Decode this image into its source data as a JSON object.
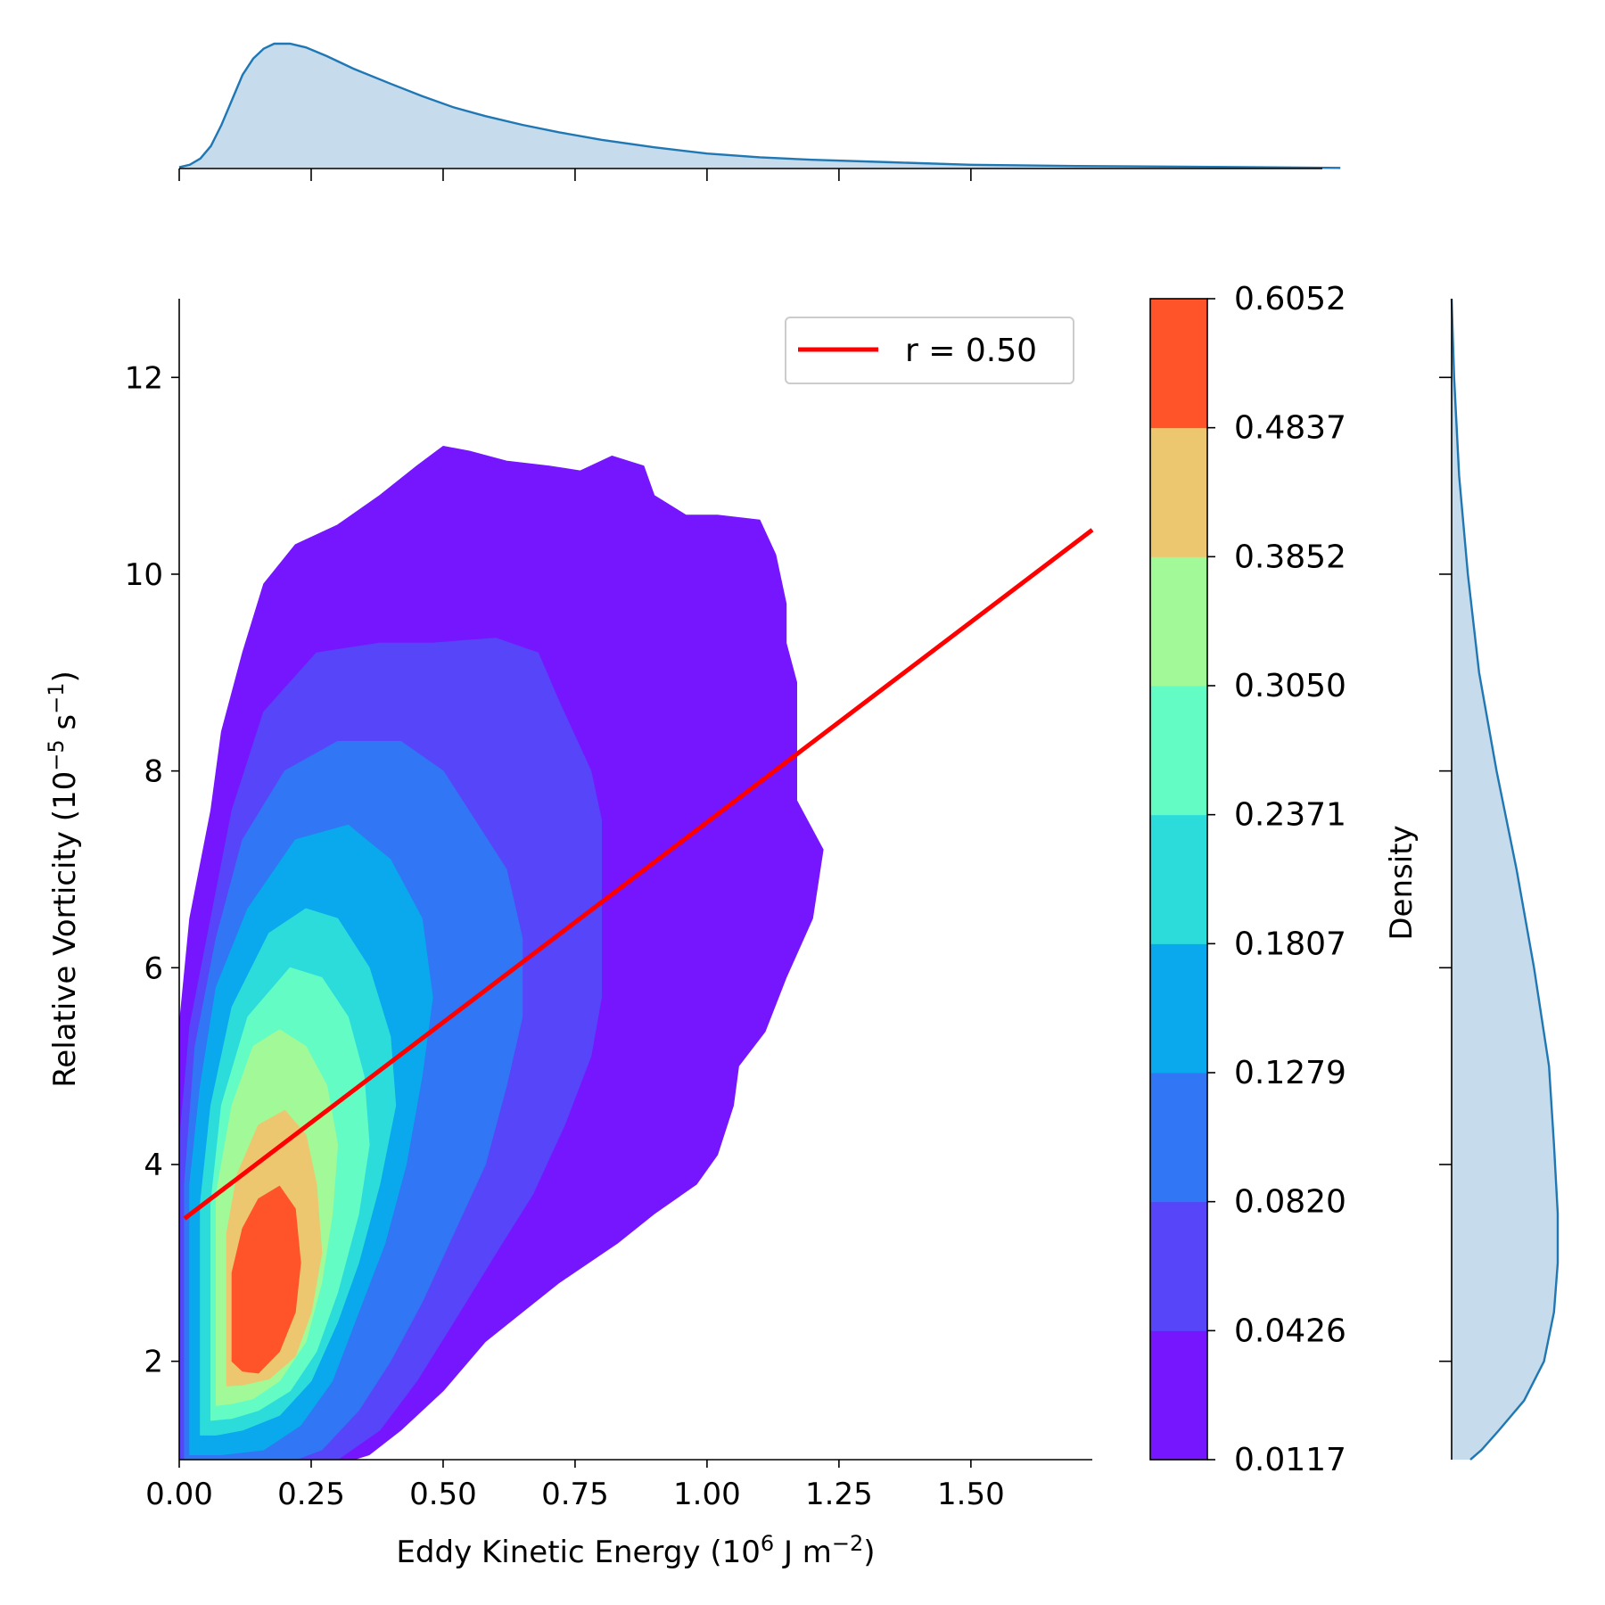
{
  "chart_data": {
    "type": "contour",
    "xlabel": {
      "base": "Eddy Kinetic Energy (10",
      "sup": "6",
      "mid": " J m",
      "sup2": "−2",
      "end": ")"
    },
    "ylabel": {
      "base": "Relative Vorticity (10",
      "sup": "−5",
      "mid": " s",
      "sup2": "−1",
      "end": ")"
    },
    "colorbar_label": "Density",
    "xlim": [
      0.0,
      1.73
    ],
    "ylim": [
      1.0,
      12.8
    ],
    "x_ticks": [
      {
        "value": 0.0,
        "label": "0.00"
      },
      {
        "value": 0.25,
        "label": "0.25"
      },
      {
        "value": 0.5,
        "label": "0.50"
      },
      {
        "value": 0.75,
        "label": "0.75"
      },
      {
        "value": 1.0,
        "label": "1.00"
      },
      {
        "value": 1.25,
        "label": "1.25"
      },
      {
        "value": 1.5,
        "label": "1.50"
      }
    ],
    "y_ticks": [
      {
        "value": 2,
        "label": "2"
      },
      {
        "value": 4,
        "label": "4"
      },
      {
        "value": 6,
        "label": "6"
      },
      {
        "value": 8,
        "label": "8"
      },
      {
        "value": 10,
        "label": "10"
      },
      {
        "value": 12,
        "label": "12"
      }
    ],
    "colorbar_levels": [
      "0.0117",
      "0.0426",
      "0.0820",
      "0.1279",
      "0.1807",
      "0.2371",
      "0.3050",
      "0.3852",
      "0.4837",
      "0.6052"
    ],
    "colorbar_colors": [
      "#7616ff",
      "#5745f9",
      "#3176f4",
      "#0aa8ec",
      "#2cdcdb",
      "#63fcc5",
      "#a2f997",
      "#ecc76f",
      "#ff542a"
    ],
    "regression": {
      "x0": 0.01,
      "y0": 3.45,
      "x1": 1.73,
      "y1": 10.45,
      "color": "#ff0000"
    },
    "legend": {
      "label": "r = 0.50",
      "placement": "top-right"
    },
    "kde_color": "#1f77b4",
    "kde_fill": "#c6dbeb"
  }
}
